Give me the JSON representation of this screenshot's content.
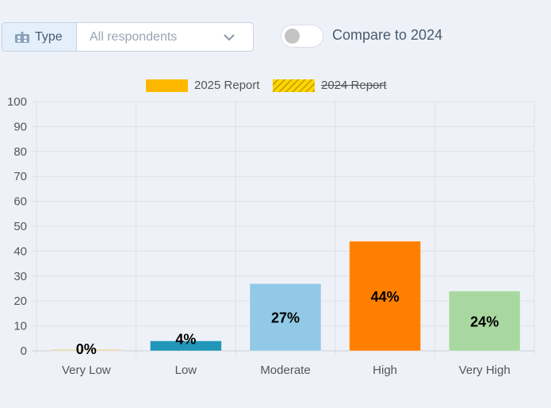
{
  "filter": {
    "type_label": "Type",
    "select_value": "All respondents"
  },
  "compare": {
    "label": "Compare to 2024",
    "enabled": false
  },
  "legend": {
    "items": [
      {
        "label": "2025 Report",
        "color": "#ffb800",
        "style": "solid",
        "hidden": false
      },
      {
        "label": "2024 Report",
        "color": "#ffd700",
        "style": "hatched",
        "hidden": true
      }
    ]
  },
  "chart_data": {
    "type": "bar",
    "categories": [
      "Very Low",
      "Low",
      "Moderate",
      "High",
      "Very High"
    ],
    "series": [
      {
        "name": "2025 Report",
        "values": [
          0,
          4,
          27,
          44,
          24
        ],
        "labels": [
          "0%",
          "4%",
          "27%",
          "44%",
          "24%"
        ],
        "colors": [
          "#e8d4a8",
          "#2196b8",
          "#92c9e6",
          "#ff8000",
          "#a8d8a0"
        ]
      }
    ],
    "ylim": [
      0,
      100
    ],
    "yticks": [
      0,
      10,
      20,
      30,
      40,
      50,
      60,
      70,
      80,
      90,
      100
    ],
    "grid": true,
    "legend_position": "top-center"
  }
}
